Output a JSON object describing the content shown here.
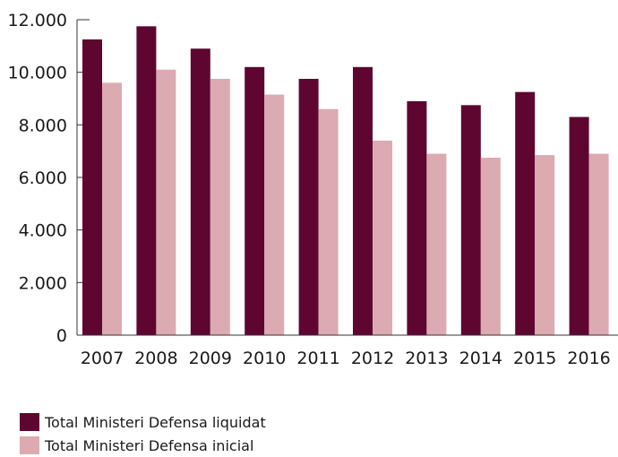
{
  "chart_data": {
    "type": "bar",
    "categories": [
      "2007",
      "2008",
      "2009",
      "2010",
      "2011",
      "2012",
      "2013",
      "2014",
      "2015",
      "2016"
    ],
    "series": [
      {
        "name": "Total Ministeri Defensa liquidat",
        "color": "#5e0630",
        "values": [
          11250,
          11750,
          10900,
          10200,
          9750,
          10200,
          8900,
          8750,
          9250,
          8300
        ]
      },
      {
        "name": "Total Ministeri Defensa inicial",
        "color": "#dcaab1",
        "values": [
          9600,
          10100,
          9750,
          9150,
          8600,
          7400,
          6900,
          6750,
          6850,
          6900
        ]
      }
    ],
    "ylim": [
      0,
      12000
    ],
    "yticks": [
      0,
      2000,
      4000,
      6000,
      8000,
      10000,
      12000
    ],
    "ytick_labels": [
      "0",
      "2.000",
      "4.000",
      "6.000",
      "8.000",
      "10.000",
      "12.000"
    ],
    "xlabel": "",
    "ylabel": "",
    "grid": false,
    "legend_position": "bottom-left"
  }
}
